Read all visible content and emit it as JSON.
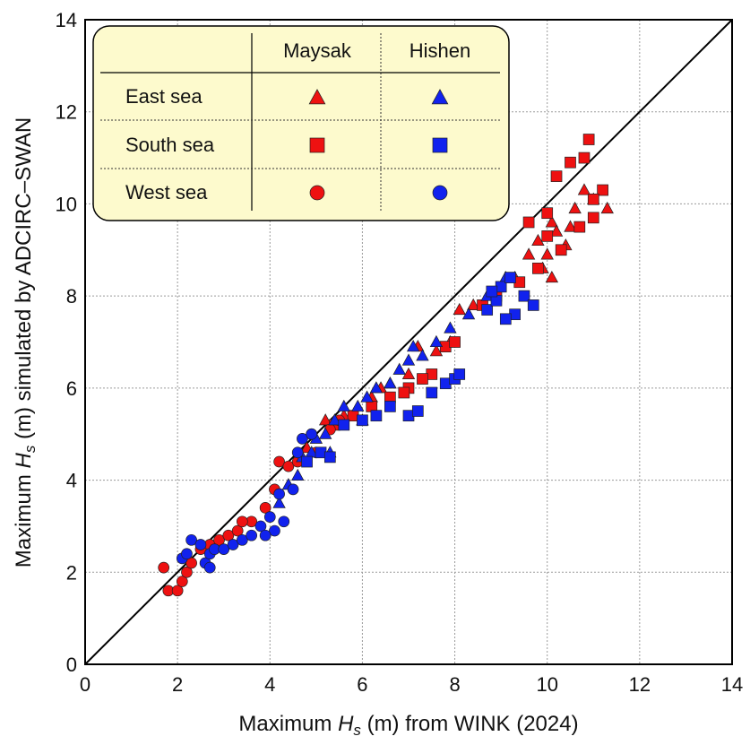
{
  "chart_data": {
    "type": "scatter",
    "xlabel": {
      "prefix": "Maximum ",
      "var": "H",
      "sub": "s",
      "suffix": " (m) from WINK (2024)"
    },
    "ylabel": {
      "prefix": "Maximum ",
      "var": "H",
      "sub": "s",
      "suffix": " (m) simulated by ADCIRC–SWAN"
    },
    "xlim": [
      0,
      14
    ],
    "ylim": [
      0,
      14
    ],
    "xticks": [
      "0",
      "2",
      "4",
      "6",
      "8",
      "10",
      "12",
      "14"
    ],
    "yticks": [
      "0",
      "2",
      "4",
      "6",
      "8",
      "10",
      "12",
      "14"
    ],
    "grid": true,
    "reference_line": {
      "type": "1:1",
      "color": "#000000"
    },
    "legend": {
      "placement": "top-left",
      "typhoon_headers": [
        "Maysak",
        "Hishen"
      ],
      "region_rows": [
        "East sea",
        "South sea",
        "West sea"
      ]
    },
    "series": [
      {
        "name": "Maysak – East sea",
        "typhoon": "Maysak",
        "region": "East sea",
        "marker": "triangle",
        "color": "#ee1111",
        "points": [
          [
            4.8,
            4.7
          ],
          [
            5.2,
            5.3
          ],
          [
            5.6,
            5.4
          ],
          [
            6.2,
            5.8
          ],
          [
            6.6,
            6.1
          ],
          [
            7.0,
            6.3
          ],
          [
            7.6,
            6.8
          ],
          [
            7.9,
            7.0
          ],
          [
            8.1,
            7.7
          ],
          [
            8.4,
            7.8
          ],
          [
            9.3,
            8.4
          ],
          [
            9.6,
            8.9
          ],
          [
            9.8,
            9.2
          ],
          [
            10.0,
            8.9
          ],
          [
            10.1,
            9.6
          ],
          [
            10.4,
            9.1
          ],
          [
            10.6,
            9.9
          ],
          [
            10.8,
            10.3
          ],
          [
            11.0,
            10.1
          ],
          [
            11.3,
            9.9
          ],
          [
            10.2,
            9.4
          ],
          [
            10.5,
            9.5
          ],
          [
            9.9,
            8.6
          ],
          [
            10.1,
            8.4
          ],
          [
            7.2,
            6.9
          ],
          [
            6.4,
            6.0
          ]
        ]
      },
      {
        "name": "Maysak – South sea",
        "typhoon": "Maysak",
        "region": "South sea",
        "marker": "square",
        "color": "#ee1111",
        "points": [
          [
            5.4,
            5.2
          ],
          [
            5.8,
            5.4
          ],
          [
            6.2,
            5.6
          ],
          [
            6.6,
            5.8
          ],
          [
            7.0,
            6.0
          ],
          [
            7.5,
            6.3
          ],
          [
            7.8,
            6.9
          ],
          [
            8.0,
            7.0
          ],
          [
            8.6,
            7.8
          ],
          [
            8.9,
            8.0
          ],
          [
            9.4,
            8.3
          ],
          [
            9.8,
            8.6
          ],
          [
            10.0,
            9.3
          ],
          [
            10.3,
            9.0
          ],
          [
            10.7,
            9.5
          ],
          [
            11.0,
            9.7
          ],
          [
            11.2,
            10.3
          ],
          [
            10.8,
            11.0
          ],
          [
            10.9,
            11.4
          ],
          [
            10.2,
            10.6
          ],
          [
            10.5,
            10.9
          ],
          [
            9.6,
            9.6
          ],
          [
            10.0,
            9.8
          ],
          [
            11.0,
            10.1
          ],
          [
            6.9,
            5.9
          ],
          [
            7.3,
            6.2
          ]
        ]
      },
      {
        "name": "Maysak – West sea",
        "typhoon": "Maysak",
        "region": "West sea",
        "marker": "circle",
        "color": "#ee1111",
        "points": [
          [
            1.7,
            2.1
          ],
          [
            1.8,
            1.6
          ],
          [
            2.0,
            1.6
          ],
          [
            2.1,
            1.8
          ],
          [
            2.2,
            2.0
          ],
          [
            2.3,
            2.2
          ],
          [
            2.5,
            2.5
          ],
          [
            2.7,
            2.6
          ],
          [
            2.9,
            2.7
          ],
          [
            3.1,
            2.8
          ],
          [
            3.3,
            2.9
          ],
          [
            3.6,
            3.1
          ],
          [
            3.9,
            3.4
          ],
          [
            4.1,
            3.8
          ],
          [
            4.2,
            4.4
          ],
          [
            4.4,
            4.3
          ],
          [
            4.6,
            4.4
          ],
          [
            5.0,
            4.6
          ],
          [
            5.3,
            5.1
          ],
          [
            5.5,
            5.3
          ],
          [
            4.9,
            5.0
          ],
          [
            3.4,
            3.1
          ]
        ]
      },
      {
        "name": "Hishen – East sea",
        "typhoon": "Hishen",
        "region": "East sea",
        "marker": "triangle",
        "color": "#1122ee",
        "points": [
          [
            4.2,
            3.5
          ],
          [
            4.4,
            3.9
          ],
          [
            4.6,
            4.1
          ],
          [
            4.9,
            4.6
          ],
          [
            5.0,
            4.9
          ],
          [
            5.2,
            5.0
          ],
          [
            5.4,
            5.3
          ],
          [
            5.6,
            5.6
          ],
          [
            5.9,
            5.6
          ],
          [
            6.1,
            5.8
          ],
          [
            6.3,
            6.0
          ],
          [
            6.6,
            6.1
          ],
          [
            6.8,
            6.4
          ],
          [
            7.0,
            6.6
          ],
          [
            7.3,
            6.7
          ],
          [
            7.6,
            7.0
          ],
          [
            7.9,
            7.3
          ],
          [
            8.3,
            7.6
          ],
          [
            8.7,
            8.0
          ],
          [
            9.1,
            8.4
          ],
          [
            5.3,
            4.6
          ],
          [
            6.0,
            5.3
          ],
          [
            4.7,
            4.5
          ],
          [
            7.1,
            6.9
          ]
        ]
      },
      {
        "name": "Hishen – South sea",
        "typhoon": "Hishen",
        "region": "South sea",
        "marker": "square",
        "color": "#1122ee",
        "points": [
          [
            4.8,
            4.4
          ],
          [
            5.1,
            4.6
          ],
          [
            5.3,
            4.5
          ],
          [
            5.6,
            5.2
          ],
          [
            6.0,
            5.3
          ],
          [
            6.3,
            5.4
          ],
          [
            6.6,
            5.6
          ],
          [
            7.0,
            5.4
          ],
          [
            7.2,
            5.5
          ],
          [
            7.5,
            5.9
          ],
          [
            7.8,
            6.1
          ],
          [
            8.0,
            6.2
          ],
          [
            8.1,
            6.3
          ],
          [
            8.7,
            7.7
          ],
          [
            8.9,
            7.9
          ],
          [
            9.0,
            8.2
          ],
          [
            9.2,
            8.4
          ],
          [
            9.3,
            7.6
          ],
          [
            9.5,
            8.0
          ],
          [
            9.7,
            7.8
          ],
          [
            8.8,
            8.1
          ],
          [
            9.1,
            7.5
          ]
        ]
      },
      {
        "name": "Hishen – West sea",
        "typhoon": "Hishen",
        "region": "West sea",
        "marker": "circle",
        "color": "#1122ee",
        "points": [
          [
            2.1,
            2.3
          ],
          [
            2.2,
            2.4
          ],
          [
            2.3,
            2.7
          ],
          [
            2.5,
            2.6
          ],
          [
            2.6,
            2.2
          ],
          [
            2.7,
            2.4
          ],
          [
            2.8,
            2.5
          ],
          [
            3.0,
            2.5
          ],
          [
            3.2,
            2.6
          ],
          [
            3.4,
            2.7
          ],
          [
            3.6,
            2.8
          ],
          [
            3.8,
            3.0
          ],
          [
            4.0,
            3.2
          ],
          [
            4.1,
            2.9
          ],
          [
            4.3,
            3.1
          ],
          [
            4.2,
            3.7
          ],
          [
            4.5,
            3.8
          ],
          [
            4.6,
            4.6
          ],
          [
            4.7,
            4.9
          ],
          [
            4.9,
            5.0
          ],
          [
            2.7,
            2.1
          ],
          [
            3.9,
            2.8
          ]
        ]
      }
    ]
  }
}
